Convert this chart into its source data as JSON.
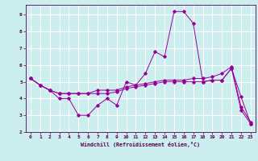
{
  "xlabel": "Windchill (Refroidissement éolien,°C)",
  "bg_color": "#cceeee",
  "line_color": "#990099",
  "grid_color": "#ffffff",
  "xlim": [
    -0.5,
    23.5
  ],
  "ylim": [
    2,
    9.6
  ],
  "yticks": [
    2,
    3,
    4,
    5,
    6,
    7,
    8,
    9
  ],
  "xticks": [
    0,
    1,
    2,
    3,
    4,
    5,
    6,
    7,
    8,
    9,
    10,
    11,
    12,
    13,
    14,
    15,
    16,
    17,
    18,
    19,
    20,
    21,
    22,
    23
  ],
  "lines": [
    {
      "x": [
        0,
        1,
        2,
        3,
        4,
        5,
        6,
        7,
        8,
        9,
        10,
        11,
        12,
        13,
        14,
        15,
        16,
        17,
        18,
        19,
        20,
        21,
        22,
        23
      ],
      "y": [
        5.2,
        4.8,
        4.5,
        4.0,
        4.0,
        3.0,
        3.0,
        3.6,
        4.0,
        3.6,
        5.0,
        4.8,
        5.5,
        6.8,
        6.5,
        9.2,
        9.2,
        8.5,
        5.0,
        5.1,
        5.1,
        5.8,
        4.1,
        2.5
      ]
    },
    {
      "x": [
        0,
        1,
        2,
        3,
        4,
        5,
        6,
        7,
        8,
        9,
        10,
        11,
        12,
        13,
        14,
        15,
        16,
        17,
        18,
        19,
        20,
        21,
        22,
        23
      ],
      "y": [
        5.2,
        4.8,
        4.5,
        4.3,
        4.3,
        4.3,
        4.3,
        4.3,
        4.3,
        4.4,
        4.6,
        4.7,
        4.8,
        4.9,
        5.0,
        5.0,
        5.0,
        5.0,
        5.0,
        5.1,
        5.1,
        5.8,
        3.3,
        2.5
      ]
    },
    {
      "x": [
        0,
        1,
        2,
        3,
        4,
        5,
        6,
        7,
        8,
        9,
        10,
        11,
        12,
        13,
        14,
        15,
        16,
        17,
        18,
        19,
        20,
        21,
        22,
        23
      ],
      "y": [
        5.2,
        4.8,
        4.5,
        4.3,
        4.3,
        4.3,
        4.3,
        4.5,
        4.5,
        4.5,
        4.7,
        4.8,
        4.9,
        5.0,
        5.1,
        5.1,
        5.1,
        5.2,
        5.2,
        5.3,
        5.5,
        5.9,
        3.5,
        2.6
      ]
    }
  ]
}
